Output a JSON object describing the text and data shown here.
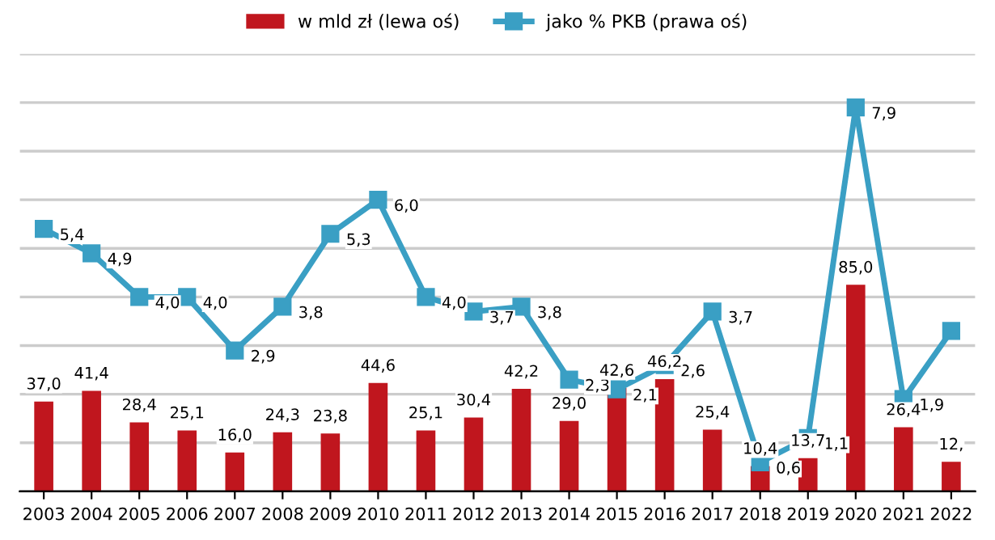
{
  "chart_data": {
    "type": "bar",
    "categories": [
      "2003",
      "2004",
      "2005",
      "2006",
      "2007",
      "2008",
      "2009",
      "2010",
      "2011",
      "2012",
      "2013",
      "2014",
      "2015",
      "2016",
      "2017",
      "2018",
      "2019",
      "2020",
      "2021",
      "2022"
    ],
    "series": [
      {
        "name": "w mld zł (lewa oś)",
        "color": "#c0161e",
        "values": [
          37.0,
          41.4,
          28.4,
          25.1,
          16.0,
          24.3,
          23.8,
          44.6,
          25.1,
          30.4,
          42.2,
          29.0,
          42.6,
          46.2,
          25.4,
          10.4,
          13.7,
          85.0,
          26.4,
          12.2
        ],
        "value_labels": [
          "37,0",
          "41,4",
          "28,4",
          "25,1",
          "16,0",
          "24,3",
          "23,8",
          "44,6",
          "25,1",
          "30,4",
          "42,2",
          "29,0",
          "42,6",
          "46,2",
          "25,4",
          "10,4",
          "13,7",
          "85,0",
          "26,4",
          "12,"
        ]
      },
      {
        "name": "jako % PKB (prawa oś)",
        "type": "line",
        "axis": "y2",
        "color": "#3a9fc4",
        "marker": "square",
        "values": [
          5.4,
          4.9,
          4.0,
          4.0,
          2.9,
          3.8,
          5.3,
          6.0,
          4.0,
          3.7,
          3.8,
          2.3,
          2.1,
          2.6,
          3.7,
          0.6,
          1.1,
          7.9,
          1.9,
          3.3
        ],
        "value_labels": [
          "5,4",
          "4,9",
          "4,0",
          "4,0",
          "2,9",
          "3,8",
          "5,3",
          "6,0",
          "4,0",
          "3,7",
          "3,8",
          "2,3",
          "2,1",
          "2,6",
          "3,7",
          "0,6",
          "1,1",
          "7,9",
          "1,9",
          null
        ]
      }
    ],
    "ylim": [
      0,
      180
    ],
    "yticks": [
      {
        "value": 0,
        "label": null
      },
      {
        "value": 20,
        "label": null
      },
      {
        "value": 40,
        "label": null
      },
      {
        "value": 60,
        "label": null
      },
      {
        "value": 80,
        "label": null
      },
      {
        "value": 100,
        "label": null
      },
      {
        "value": 120,
        "label": null
      },
      {
        "value": 140,
        "label": null
      },
      {
        "value": 160,
        "label": null
      },
      {
        "value": 180,
        "label": null
      }
    ],
    "y2lim": [
      0,
      9
    ],
    "tick_labels": "x",
    "grid": "y",
    "legend": "top"
  }
}
